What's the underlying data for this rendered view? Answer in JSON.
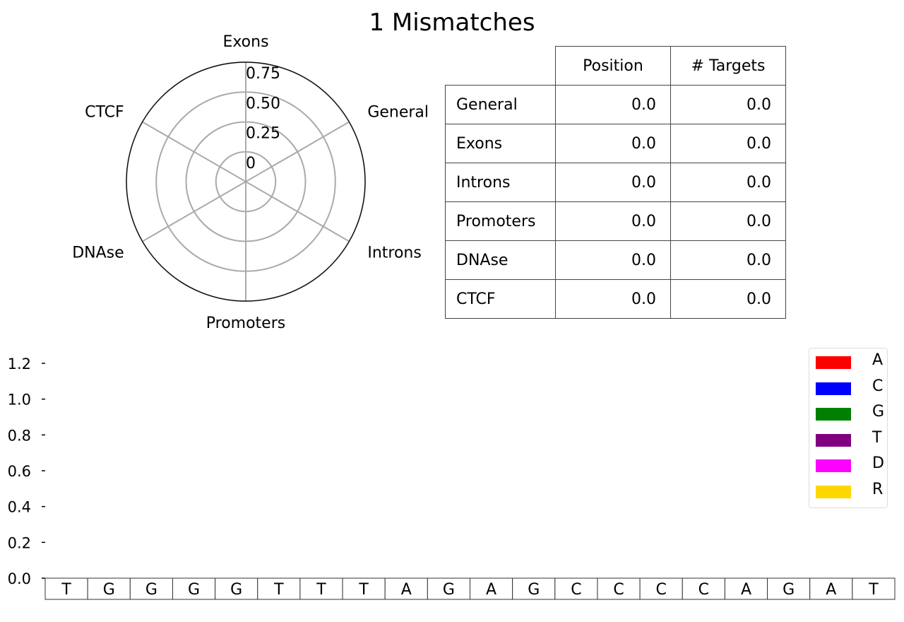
{
  "title": "1 Mismatches",
  "radar": {
    "axes": [
      "Exons",
      "General",
      "Introns",
      "Promoters",
      "DNAse",
      "CTCF"
    ],
    "ring_labels": [
      "0",
      "0.25",
      "0.50",
      "0.75"
    ],
    "ring_values": [
      0,
      0.25,
      0.5,
      0.75
    ],
    "rmax": 1.0
  },
  "table": {
    "columns": [
      "Position",
      "# Targets"
    ],
    "rows": [
      {
        "label": "General",
        "position": "0.0",
        "targets": "0.0"
      },
      {
        "label": "Exons",
        "position": "0.0",
        "targets": "0.0"
      },
      {
        "label": "Introns",
        "position": "0.0",
        "targets": "0.0"
      },
      {
        "label": "Promoters",
        "position": "0.0",
        "targets": "0.0"
      },
      {
        "label": "DNAse",
        "position": "0.0",
        "targets": "0.0"
      },
      {
        "label": "CTCF",
        "position": "0.0",
        "targets": "0.0"
      }
    ]
  },
  "chart_data": [
    {
      "type": "radar",
      "axes": [
        "Exons",
        "General",
        "Introns",
        "Promoters",
        "DNAse",
        "CTCF"
      ],
      "values": [
        0,
        0,
        0,
        0,
        0,
        0
      ],
      "rlim": [
        0,
        1.0
      ],
      "rticks": [
        "0",
        "0.25",
        "0.50",
        "0.75"
      ]
    },
    {
      "type": "bar",
      "stacked": true,
      "categories": [
        "T",
        "G",
        "G",
        "G",
        "G",
        "T",
        "T",
        "T",
        "A",
        "G",
        "A",
        "G",
        "C",
        "C",
        "C",
        "C",
        "A",
        "G",
        "A",
        "T"
      ],
      "series": [
        {
          "name": "A",
          "color": "#ff0000",
          "values": [
            0,
            0,
            0,
            0,
            0,
            0,
            0,
            0,
            0,
            0,
            0,
            0,
            0,
            0,
            0,
            0,
            0,
            0,
            0,
            0
          ]
        },
        {
          "name": "C",
          "color": "#0000ff",
          "values": [
            0,
            0,
            0,
            0,
            0,
            0,
            0,
            0,
            0,
            0,
            0,
            0,
            0,
            0,
            0,
            0,
            0,
            0,
            0,
            0
          ]
        },
        {
          "name": "G",
          "color": "#008000",
          "values": [
            0,
            0,
            0,
            0,
            0,
            0,
            0,
            0,
            0,
            0,
            0,
            0,
            0,
            0,
            0,
            0,
            0,
            0,
            0,
            0
          ]
        },
        {
          "name": "T",
          "color": "#800080",
          "values": [
            0,
            0,
            0,
            0,
            0,
            0,
            0,
            0,
            0,
            0,
            0,
            0,
            0,
            0,
            0,
            0,
            0,
            0,
            0,
            0
          ]
        },
        {
          "name": "D",
          "color": "#ff00ff",
          "values": [
            0,
            0,
            0,
            0,
            0,
            0,
            0,
            0,
            0,
            0,
            0,
            0,
            0,
            0,
            0,
            0,
            0,
            0,
            0,
            0
          ]
        },
        {
          "name": "R",
          "color": "#ffd700",
          "values": [
            0,
            0,
            0,
            0,
            0,
            0,
            0,
            0,
            0,
            0,
            0,
            0,
            0,
            0,
            0,
            0,
            0,
            0,
            0,
            0
          ]
        }
      ],
      "yticks": [
        "0.0",
        "0.2",
        "0.4",
        "0.6",
        "0.8",
        "1.0",
        "1.2"
      ],
      "ylim": [
        0,
        1.2
      ],
      "legend": "top-right",
      "grid": false
    }
  ]
}
